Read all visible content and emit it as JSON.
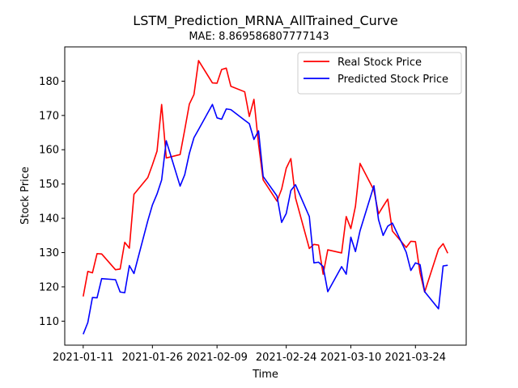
{
  "chart_data": {
    "type": "line",
    "title": "LSTM_Prediction_MRNA_AllTrained_Curve",
    "subtitle": "MAE: 8.869586807777143",
    "xlabel": "Time",
    "ylabel": "Stock Price",
    "x_ticks": [
      "2021-01-11",
      "2021-01-26",
      "2021-02-09",
      "2021-02-24",
      "2021-03-10",
      "2021-03-24"
    ],
    "y_ticks": [
      110,
      120,
      130,
      140,
      150,
      160,
      170,
      180
    ],
    "xlim": [
      "2021-01-07",
      "2021-04-04"
    ],
    "ylim": [
      103,
      190
    ],
    "grid": false,
    "legend_position": "top-right",
    "x": [
      "2021-01-11",
      "2021-01-12",
      "2021-01-13",
      "2021-01-14",
      "2021-01-15",
      "2021-01-18",
      "2021-01-19",
      "2021-01-20",
      "2021-01-21",
      "2021-01-22",
      "2021-01-25",
      "2021-01-26",
      "2021-01-27",
      "2021-01-28",
      "2021-01-29",
      "2021-02-01",
      "2021-02-02",
      "2021-02-03",
      "2021-02-04",
      "2021-02-05",
      "2021-02-08",
      "2021-02-09",
      "2021-02-10",
      "2021-02-11",
      "2021-02-12",
      "2021-02-15",
      "2021-02-16",
      "2021-02-17",
      "2021-02-18",
      "2021-02-19",
      "2021-02-22",
      "2021-02-23",
      "2021-02-24",
      "2021-02-25",
      "2021-02-26",
      "2021-03-01",
      "2021-03-02",
      "2021-03-03",
      "2021-03-04",
      "2021-03-05",
      "2021-03-08",
      "2021-03-09",
      "2021-03-10",
      "2021-03-11",
      "2021-03-12",
      "2021-03-15",
      "2021-03-16",
      "2021-03-17",
      "2021-03-18",
      "2021-03-19",
      "2021-03-22",
      "2021-03-23",
      "2021-03-24",
      "2021-03-25",
      "2021-03-26",
      "2021-03-29",
      "2021-03-30",
      "2021-03-31"
    ],
    "series": [
      {
        "name": "Real Stock Price",
        "color": "#ff0000",
        "values": [
          117.2,
          124.5,
          124.1,
          129.7,
          129.6,
          125.0,
          125.2,
          133.0,
          131.3,
          147.0,
          151.9,
          155.6,
          159.6,
          173.2,
          157.6,
          158.6,
          165.8,
          173.3,
          176.1,
          186.0,
          179.5,
          179.4,
          183.4,
          183.8,
          178.5,
          176.9,
          169.7,
          174.7,
          161.6,
          151.2,
          145.0,
          148.5,
          154.6,
          157.4,
          146.0,
          131.2,
          132.4,
          132.2,
          123.7,
          130.8,
          129.9,
          140.5,
          137.0,
          143.5,
          156.0,
          148.2,
          141.3,
          143.5,
          145.6,
          136.3,
          131.5,
          133.3,
          133.2,
          124.1,
          118.5,
          131.0,
          132.6,
          129.8
        ]
      },
      {
        "name": "Predicted Stock Price",
        "color": "#0000ff",
        "values": [
          106.2,
          109.6,
          116.9,
          116.8,
          122.4,
          122.1,
          118.5,
          118.3,
          126.2,
          123.9,
          139.3,
          143.9,
          147.1,
          151.2,
          162.6,
          149.4,
          152.7,
          158.9,
          163.5,
          165.9,
          173.2,
          169.3,
          168.9,
          171.9,
          171.7,
          168.6,
          167.6,
          163.0,
          165.5,
          152.2,
          146.5,
          138.8,
          141.4,
          148.1,
          149.8,
          140.5,
          127.0,
          127.2,
          125.9,
          118.6,
          125.9,
          123.7,
          134.5,
          130.3,
          136.4,
          149.5,
          139.6,
          135.0,
          137.7,
          138.6,
          130.1,
          124.8,
          127.0,
          126.5,
          118.6,
          113.6,
          126.1,
          126.3
        ]
      }
    ]
  }
}
